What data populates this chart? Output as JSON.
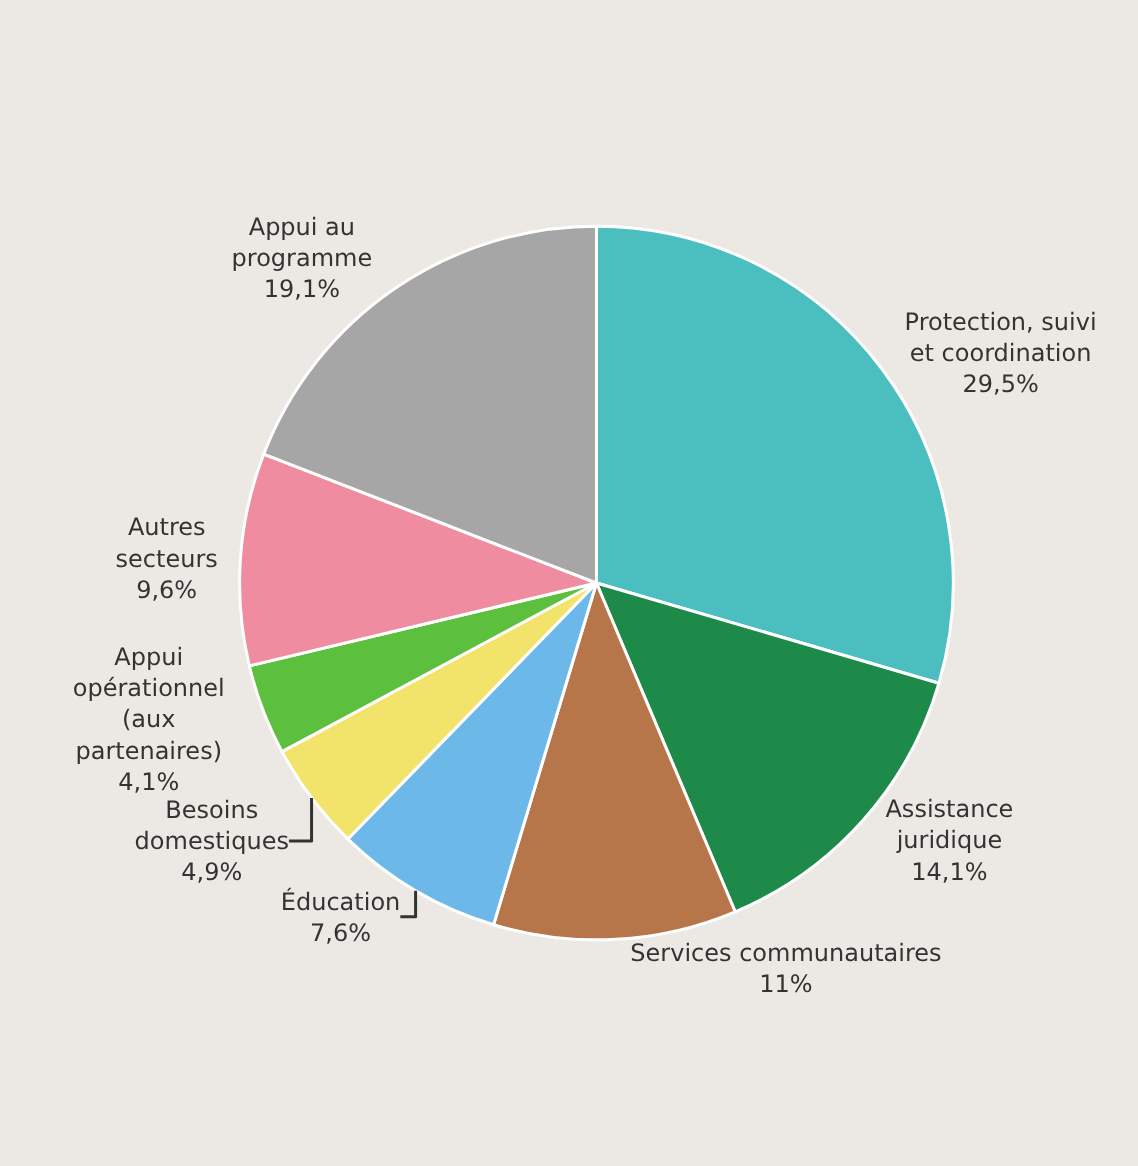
{
  "chart_data": {
    "type": "pie",
    "categories": [
      "Protection, suivi\net coordination",
      "Assistance\njuridique",
      "Services communautaires",
      "Éducation",
      "Besoins\ndomestiques",
      "Appui\nopérationnel\n(aux\npartenaires)",
      "Autres\nsecteurs",
      "Appui au\nprogramme"
    ],
    "values": [
      29.5,
      14.1,
      11,
      7.6,
      4.9,
      4.1,
      9.6,
      19.1
    ],
    "value_labels": [
      "29,5%",
      "14,1%",
      "11%",
      "7,6%",
      "4,9%",
      "4,1%",
      "9,6%",
      "19,1%"
    ],
    "colors": [
      "#4bbfc0",
      "#1e8a4a",
      "#b7754a",
      "#6cb8e8",
      "#f2e36a",
      "#5cbf3e",
      "#f08ca0",
      "#a6a6a6"
    ],
    "legend": false
  }
}
